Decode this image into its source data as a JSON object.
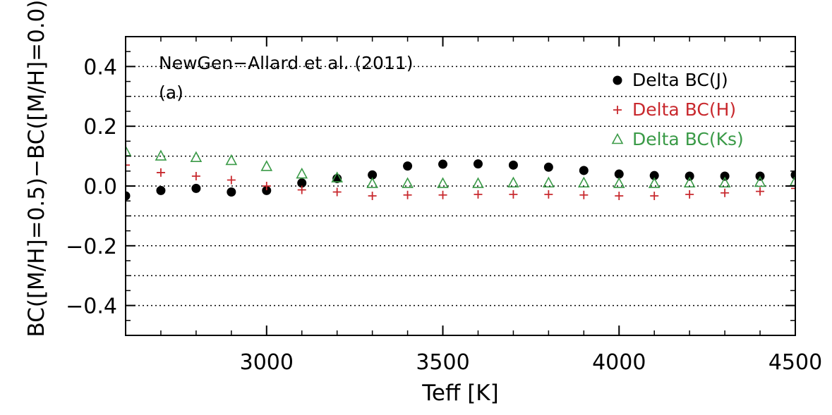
{
  "chart_data": {
    "type": "scatter",
    "xlabel": "Teff [K]",
    "ylabel": "BC([M/H]=0.5)−BC([M/H]=0.0)",
    "xlim": [
      2600,
      4500
    ],
    "ylim": [
      -0.5,
      0.5
    ],
    "x_ticks": [
      3000,
      3500,
      4000,
      4500
    ],
    "x_tick_labels": [
      "3000",
      "3500",
      "4000",
      "4500"
    ],
    "y_ticks": [
      -0.4,
      -0.2,
      0.0,
      0.2,
      0.4
    ],
    "y_tick_labels": [
      "−0.4",
      "−0.2",
      "0.0",
      "0.2",
      "0.4"
    ],
    "grid": "horizontal dotted lines every 0.1",
    "legend_position": "top-right",
    "annotations": [
      "NewGen−Allard et al. (2011)",
      "(a)"
    ],
    "x": [
      2600,
      2700,
      2800,
      2900,
      3000,
      3100,
      3200,
      3300,
      3400,
      3500,
      3600,
      3700,
      3800,
      3900,
      4000,
      4100,
      4200,
      4300,
      4400,
      4500
    ],
    "series": [
      {
        "name": "Delta BC(J)",
        "marker": "filled-circle",
        "color": "#000000",
        "values": [
          -0.033,
          -0.015,
          -0.008,
          -0.02,
          -0.015,
          0.01,
          0.025,
          0.037,
          0.067,
          0.073,
          0.074,
          0.07,
          0.063,
          0.052,
          0.04,
          0.035,
          0.033,
          0.033,
          0.033,
          0.037
        ]
      },
      {
        "name": "Delta BC(H)",
        "marker": "plus",
        "color": "#c8282d",
        "values": [
          0.07,
          0.045,
          0.033,
          0.02,
          0.0,
          -0.013,
          -0.02,
          -0.033,
          -0.03,
          -0.03,
          -0.028,
          -0.028,
          -0.028,
          -0.03,
          -0.033,
          -0.033,
          -0.028,
          -0.023,
          -0.018,
          -0.008
        ]
      },
      {
        "name": "Delta BC(Ks)",
        "marker": "open-triangle",
        "color": "#3a9a47",
        "values": [
          0.115,
          0.1,
          0.095,
          0.085,
          0.065,
          0.04,
          0.027,
          0.008,
          0.008,
          0.008,
          0.008,
          0.01,
          0.01,
          0.01,
          0.008,
          0.008,
          0.01,
          0.01,
          0.012,
          0.015
        ]
      }
    ]
  }
}
